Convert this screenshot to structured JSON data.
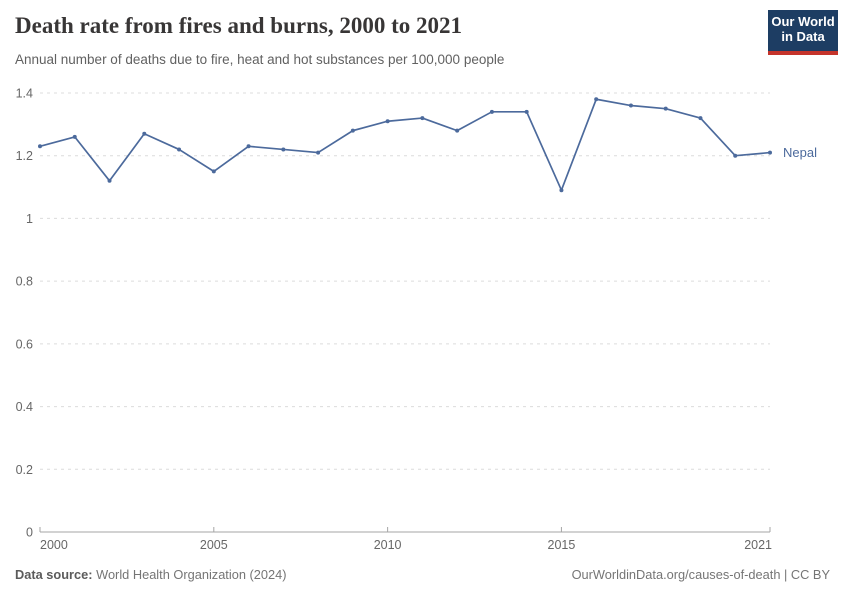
{
  "header": {
    "title": "Death rate from fires and burns, 2000 to 2021",
    "subtitle": "Annual number of deaths due to fire, heat and hot substances per 100,000 people",
    "logo": {
      "line1": "Our World",
      "line2": "in Data"
    }
  },
  "chart_data": {
    "type": "line",
    "title": "Death rate from fires and burns, 2000 to 2021",
    "xlabel": "",
    "ylabel": "",
    "xlim": [
      2000,
      2021
    ],
    "ylim": [
      0,
      1.4
    ],
    "x_ticks": [
      2000,
      2005,
      2010,
      2015,
      2021
    ],
    "y_ticks": [
      0,
      0.2,
      0.4,
      0.6,
      0.8,
      1,
      1.2,
      1.4
    ],
    "grid": "horizontal-dashed",
    "legend_position": "end-of-line-label",
    "x": [
      2000,
      2001,
      2002,
      2003,
      2004,
      2005,
      2006,
      2007,
      2008,
      2009,
      2010,
      2011,
      2012,
      2013,
      2014,
      2015,
      2016,
      2017,
      2018,
      2019,
      2020,
      2021
    ],
    "series": [
      {
        "name": "Nepal",
        "color": "#4C6A9C",
        "values": [
          1.23,
          1.26,
          1.12,
          1.27,
          1.22,
          1.15,
          1.23,
          1.22,
          1.21,
          1.28,
          1.31,
          1.32,
          1.28,
          1.34,
          1.34,
          1.09,
          1.38,
          1.36,
          1.35,
          1.32,
          1.2,
          1.21
        ]
      }
    ]
  },
  "footer": {
    "source_label": "Data source:",
    "source_value": "World Health Organization (2024)",
    "citation": "OurWorldinData.org/causes-of-death | CC BY"
  },
  "colors": {
    "line": "#4C6A9C",
    "logo_bg": "#1d3d63",
    "logo_accent": "#c5342b",
    "grid": "#dcdcdc",
    "axis": "#a5a5a5"
  }
}
